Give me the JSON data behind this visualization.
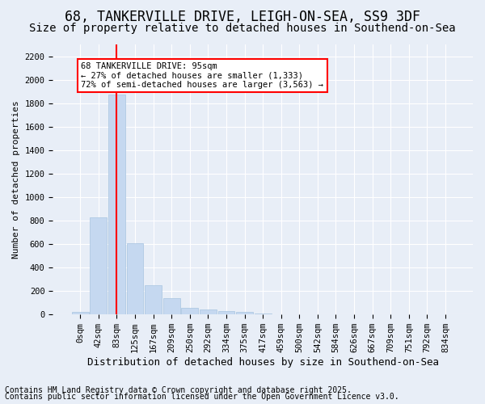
{
  "title": "68, TANKERVILLE DRIVE, LEIGH-ON-SEA, SS9 3DF",
  "subtitle": "Size of property relative to detached houses in Southend-on-Sea",
  "xlabel": "Distribution of detached houses by size in Southend-on-Sea",
  "ylabel": "Number of detached properties",
  "bar_color": "#c5d8f0",
  "bar_edgecolor": "#a8c4e0",
  "bin_labels": [
    "0sqm",
    "42sqm",
    "83sqm",
    "125sqm",
    "167sqm",
    "209sqm",
    "250sqm",
    "292sqm",
    "334sqm",
    "375sqm",
    "417sqm",
    "459sqm",
    "500sqm",
    "542sqm",
    "584sqm",
    "626sqm",
    "667sqm",
    "709sqm",
    "751sqm",
    "792sqm",
    "834sqm"
  ],
  "bar_values": [
    20,
    830,
    1870,
    610,
    250,
    140,
    55,
    40,
    30,
    20,
    5,
    0,
    0,
    0,
    0,
    0,
    0,
    0,
    0,
    0,
    0
  ],
  "ylim": [
    0,
    2300
  ],
  "yticks": [
    0,
    200,
    400,
    600,
    800,
    1000,
    1200,
    1400,
    1600,
    1800,
    2000,
    2200
  ],
  "property_line_x": 2.0,
  "annotation_text": "68 TANKERVILLE DRIVE: 95sqm\n← 27% of detached houses are smaller (1,333)\n72% of semi-detached houses are larger (3,563) →",
  "footnote1": "Contains HM Land Registry data © Crown copyright and database right 2025.",
  "footnote2": "Contains public sector information licensed under the Open Government Licence v3.0.",
  "background_color": "#e8eef7",
  "grid_color": "#ffffff",
  "title_fontsize": 12,
  "subtitle_fontsize": 10,
  "xlabel_fontsize": 9,
  "ylabel_fontsize": 8,
  "tick_fontsize": 7.5,
  "footnote_fontsize": 7
}
